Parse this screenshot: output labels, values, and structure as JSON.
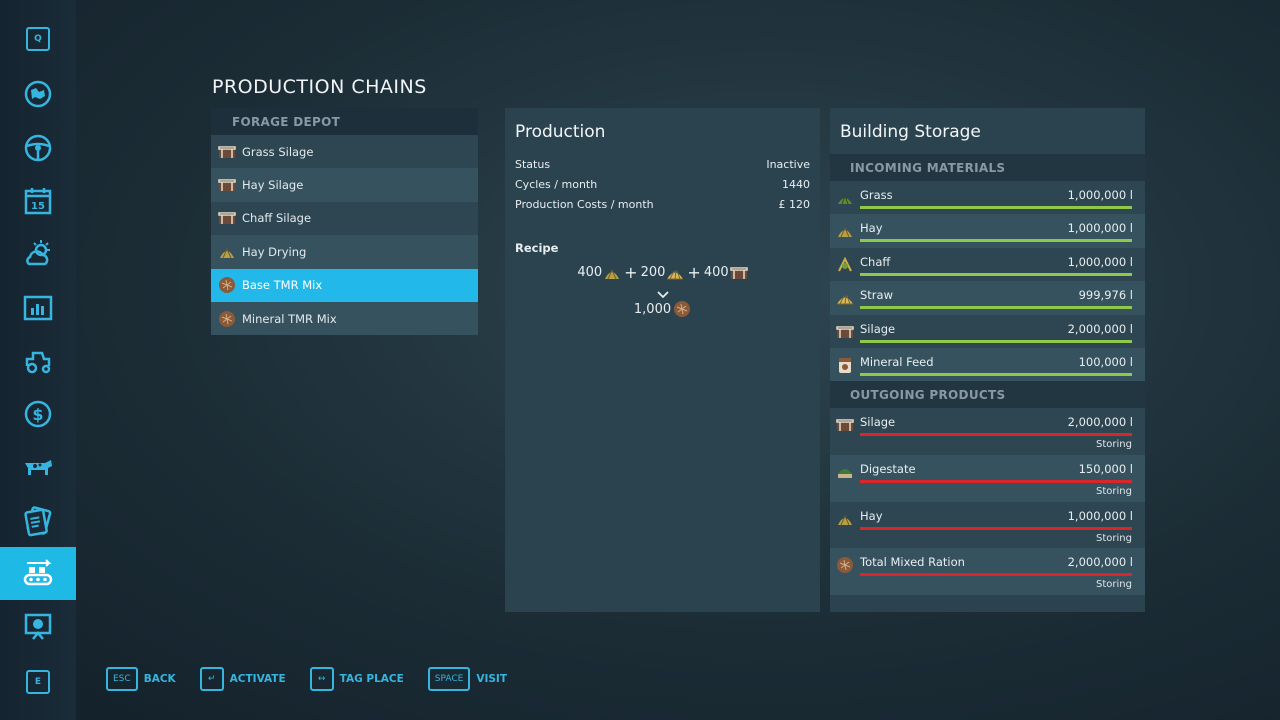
{
  "page_title": "PRODUCTION CHAINS",
  "sidebar": {
    "top_key": "Q",
    "bottom_key": "E",
    "items": [
      {
        "icon": "map-icon"
      },
      {
        "icon": "steering-wheel-icon"
      },
      {
        "icon": "calendar-icon",
        "label": "15"
      },
      {
        "icon": "weather-icon"
      },
      {
        "icon": "statistics-icon"
      },
      {
        "icon": "vehicles-icon"
      },
      {
        "icon": "finances-icon"
      },
      {
        "icon": "animals-icon"
      },
      {
        "icon": "contracts-icon"
      },
      {
        "icon": "production-icon",
        "active": true
      },
      {
        "icon": "help-icon"
      }
    ],
    "accent": "#1fb9e6"
  },
  "chains": {
    "header": "FORAGE DEPOT",
    "items": [
      {
        "label": "Grass Silage",
        "icon": "silage-icon"
      },
      {
        "label": "Hay Silage",
        "icon": "silage-icon"
      },
      {
        "label": "Chaff Silage",
        "icon": "silage-icon"
      },
      {
        "label": "Hay Drying",
        "icon": "hay-icon"
      },
      {
        "label": "Base TMR Mix",
        "icon": "tmr-icon",
        "selected": true
      },
      {
        "label": "Mineral TMR Mix",
        "icon": "tmr-icon"
      }
    ]
  },
  "production": {
    "title": "Production",
    "status_label": "Status",
    "status_value": "Inactive",
    "cycles_label": "Cycles / month",
    "cycles_value": "1440",
    "costs_label": "Production Costs / month",
    "costs_value": "£ 120",
    "recipe_label": "Recipe",
    "recipe_inputs": [
      {
        "amount": "400",
        "icon": "hay-icon"
      },
      {
        "amount": "200",
        "icon": "straw-icon"
      },
      {
        "amount": "400",
        "icon": "silage-icon"
      }
    ],
    "recipe_plus": "+",
    "recipe_output": {
      "amount": "1,000",
      "icon": "tmr-icon"
    }
  },
  "storage": {
    "title": "Building Storage",
    "incoming_header": "INCOMING MATERIALS",
    "incoming": [
      {
        "name": "Grass",
        "value": "1,000,000 l",
        "fill": 1.0,
        "icon": "grass-icon"
      },
      {
        "name": "Hay",
        "value": "1,000,000 l",
        "fill": 1.0,
        "icon": "hay-icon"
      },
      {
        "name": "Chaff",
        "value": "1,000,000 l",
        "fill": 1.0,
        "icon": "chaff-icon"
      },
      {
        "name": "Straw",
        "value": "999,976 l",
        "fill": 1.0,
        "icon": "straw-icon"
      },
      {
        "name": "Silage",
        "value": "2,000,000 l",
        "fill": 1.0,
        "icon": "silage-icon"
      },
      {
        "name": "Mineral Feed",
        "value": "100,000 l",
        "fill": 1.0,
        "icon": "mineral-feed-icon"
      }
    ],
    "outgoing_header": "OUTGOING PRODUCTS",
    "outgoing": [
      {
        "name": "Silage",
        "value": "2,000,000 l",
        "fill": 1.0,
        "status": "Storing",
        "icon": "silage-icon"
      },
      {
        "name": "Digestate",
        "value": "150,000 l",
        "fill": 1.0,
        "status": "Storing",
        "icon": "digestate-icon"
      },
      {
        "name": "Hay",
        "value": "1,000,000 l",
        "fill": 1.0,
        "status": "Storing",
        "icon": "hay-icon"
      },
      {
        "name": "Total Mixed Ration",
        "value": "2,000,000 l",
        "fill": 1.0,
        "status": "Storing",
        "icon": "tmr-icon"
      }
    ],
    "bar_green": "#8fc94a",
    "bar_red": "#d8262b"
  },
  "hints": [
    {
      "key": "ESC",
      "label": "BACK"
    },
    {
      "key": "↵",
      "label": "ACTIVATE"
    },
    {
      "key": "↔",
      "label": "TAG PLACE"
    },
    {
      "key": "SPACE",
      "label": "VISIT"
    }
  ]
}
